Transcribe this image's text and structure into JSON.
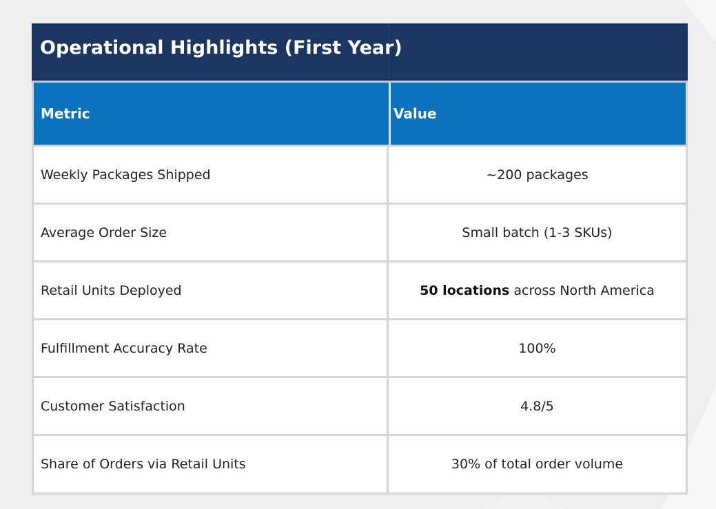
{
  "title": "Operational Highlights (First Year)",
  "columns": [
    "Metric",
    "Value"
  ],
  "rows": [
    {
      "metric": "Weekly Packages Shipped",
      "value_bold": "",
      "value": "~200 packages"
    },
    {
      "metric": "Average Order Size",
      "value_bold": "",
      "value": "Small batch (1-3 SKUs)"
    },
    {
      "metric": "Retail Units Deployed",
      "value_bold": "50 locations",
      "value": " across North America"
    },
    {
      "metric": "Fulfillment Accuracy Rate",
      "value_bold": "",
      "value": "100%"
    },
    {
      "metric": "Customer Satisfaction",
      "value_bold": "",
      "value": "4.8/5"
    },
    {
      "metric": "Share of Orders via Retail Units",
      "value_bold": "",
      "value": "30% of total order volume"
    }
  ],
  "colors": {
    "title_bg": "#1c3664",
    "header_bg": "#0a72bf",
    "page_bg": "#eeeeee"
  }
}
